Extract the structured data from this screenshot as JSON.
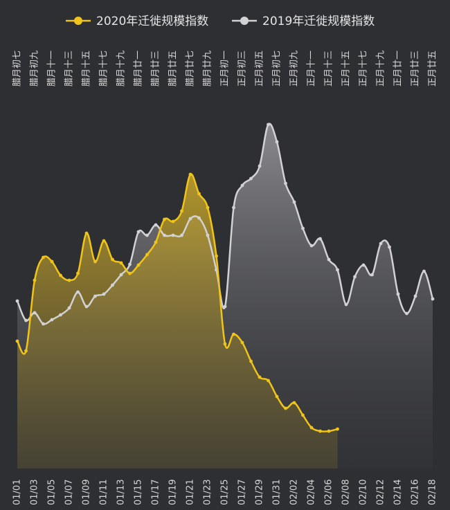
{
  "chart_data": {
    "type": "line",
    "area": true,
    "categories": [
      "01/01",
      null,
      "01/03",
      null,
      "01/05",
      null,
      "01/07",
      null,
      "01/09",
      null,
      "01/11",
      null,
      "01/13",
      null,
      "01/15",
      null,
      "01/17",
      null,
      "01/19",
      null,
      "01/21",
      null,
      "01/23",
      null,
      "01/25",
      null,
      "01/27",
      null,
      "01/29",
      null,
      "01/31",
      null,
      "02/02",
      null,
      "02/04",
      null,
      "02/06",
      null,
      "02/08",
      null,
      "02/10",
      null,
      "02/12",
      null,
      "02/14",
      null,
      "02/16",
      null,
      "02/18"
    ],
    "lunar_categories": [
      "腊月初七",
      null,
      "腊月初九",
      null,
      "腊月十一",
      null,
      "腊月十三",
      null,
      "腊月十五",
      null,
      "腊月十七",
      null,
      "腊月十九",
      null,
      "腊月廿一",
      null,
      "腊月廿三",
      null,
      "腊月廿五",
      null,
      "腊月廿七",
      null,
      "腊月廿九",
      null,
      "正月初一",
      null,
      "正月初三",
      null,
      "正月初五",
      null,
      "正月初七",
      null,
      "正月初九",
      null,
      "正月十一",
      null,
      "正月十三",
      null,
      "正月十五",
      null,
      "正月十七",
      null,
      "正月十九",
      null,
      "正月廿一",
      null,
      "正月廿三",
      null,
      "正月廿五"
    ],
    "series": [
      {
        "name": "2020年迁徙规模指数",
        "color": "#f0c419",
        "values": [
          36.8,
          34,
          54.4,
          61,
          59.8,
          55.8,
          54.4,
          56.4,
          68,
          59.8,
          65.8,
          60.4,
          59.4,
          56.4,
          58.8,
          61.8,
          65.4,
          72,
          71.4,
          74.4,
          85,
          79.4,
          75.4,
          61.4,
          36,
          38.8,
          36.4,
          31,
          26.4,
          25.4,
          20.8,
          17.4,
          19,
          15.4,
          11.8,
          10.8,
          10.8,
          11.4,
          null,
          null,
          null,
          null,
          null,
          null,
          null,
          null,
          null,
          null,
          null
        ]
      },
      {
        "name": "2019年迁徙规模指数",
        "color": "#d2d2d4",
        "values": [
          48.4,
          42.8,
          45,
          41.8,
          43,
          44.4,
          46.4,
          51,
          46.8,
          49.8,
          50.4,
          53,
          56,
          59,
          68.4,
          67.4,
          70.4,
          67.4,
          67.4,
          67.4,
          72.2,
          72.4,
          67.4,
          57.4,
          46.8,
          75.4,
          81.8,
          83.8,
          87.4,
          99.4,
          94.4,
          82.4,
          77,
          69.4,
          64.4,
          66.4,
          60.4,
          57.4,
          47.4,
          55.4,
          58.8,
          56,
          65,
          64,
          50.4,
          44.8,
          49.8,
          57,
          49
        ]
      }
    ],
    "ylim": [
      0,
      100
    ]
  }
}
